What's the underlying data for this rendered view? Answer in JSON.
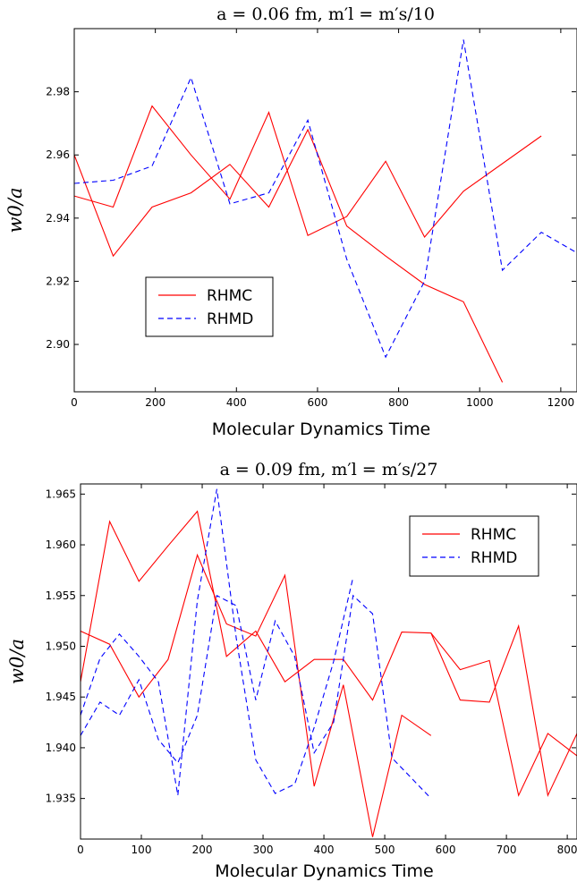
{
  "chart_data": [
    {
      "type": "line",
      "title": "a = 0.06 fm,  m′l = m′s/10",
      "xlabel": "Molecular Dynamics Time",
      "ylabel": "w0/a",
      "xlim": [
        0,
        1240
      ],
      "ylim": [
        2.885,
        3.0
      ],
      "xticks": [
        "0",
        "200",
        "400",
        "600",
        "800",
        "1000",
        "1200"
      ],
      "xtick_values": [
        0,
        200,
        400,
        600,
        800,
        1000,
        1200
      ],
      "yticks": [
        "2.90",
        "2.92",
        "2.94",
        "2.96",
        "2.98"
      ],
      "ytick_values": [
        2.9,
        2.92,
        2.94,
        2.96,
        2.98
      ],
      "legend": {
        "position": "lower-left",
        "entries": [
          "RHMC",
          "RHMD"
        ]
      },
      "colors": {
        "RHMC": "#ff0000",
        "RHMD": "#0000ff"
      },
      "series": [
        {
          "name": "RHMC",
          "style": "solid",
          "color": "#ff0000",
          "x": [
            0,
            96,
            192,
            288,
            384,
            480,
            576,
            672,
            768,
            864,
            960,
            1056
          ],
          "y": [
            2.96,
            2.928,
            2.9435,
            2.948,
            2.957,
            2.9435,
            2.968,
            2.9375,
            2.928,
            2.919,
            2.9135,
            2.888
          ]
        },
        {
          "name": "RHMC",
          "style": "solid",
          "color": "#ff0000",
          "x": [
            0,
            96,
            192,
            288,
            384,
            480,
            576,
            672,
            768,
            864,
            960,
            1152
          ],
          "y": [
            2.947,
            2.9435,
            2.9755,
            2.96,
            2.946,
            2.9735,
            2.9345,
            2.9405,
            2.958,
            2.934,
            2.9485,
            2.966
          ]
        },
        {
          "name": "RHMD",
          "style": "dashed",
          "color": "#0000ff",
          "x": [
            0,
            96,
            192,
            288,
            384,
            480,
            576,
            672,
            768,
            864,
            960,
            1056,
            1152,
            1240
          ],
          "y": [
            2.951,
            2.952,
            2.9565,
            2.9845,
            2.9445,
            2.948,
            2.971,
            2.927,
            2.896,
            2.92,
            2.9965,
            2.9235,
            2.9355,
            2.929
          ]
        }
      ]
    },
    {
      "type": "line",
      "title": "a = 0.09 fm,  m′l = m′s/27",
      "xlabel": "Molecular Dynamics Time",
      "ylabel": "w0/a",
      "xlim": [
        0,
        816
      ],
      "ylim": [
        1.931,
        1.966
      ],
      "xticks": [
        "0",
        "100",
        "200",
        "300",
        "400",
        "500",
        "600",
        "700",
        "800"
      ],
      "xtick_values": [
        0,
        100,
        200,
        300,
        400,
        500,
        600,
        700,
        800
      ],
      "yticks": [
        "1.935",
        "1.940",
        "1.945",
        "1.950",
        "1.955",
        "1.960",
        "1.965"
      ],
      "ytick_values": [
        1.935,
        1.94,
        1.945,
        1.95,
        1.955,
        1.96,
        1.965
      ],
      "legend": {
        "position": "top-right",
        "entries": [
          "RHMC",
          "RHMD"
        ]
      },
      "colors": {
        "RHMC": "#ff0000",
        "RHMD": "#0000ff"
      },
      "series": [
        {
          "name": "RHMC",
          "style": "solid",
          "color": "#ff0000",
          "x": [
            0,
            48,
            96,
            144,
            192,
            240,
            288,
            336,
            384,
            432,
            480,
            528,
            576
          ],
          "y": [
            1.9515,
            1.9502,
            1.945,
            1.9487,
            1.959,
            1.9522,
            1.951,
            1.957,
            1.9362,
            1.9462,
            1.9312,
            1.9432,
            1.9412
          ]
        },
        {
          "name": "RHMC",
          "style": "solid",
          "color": "#ff0000",
          "x": [
            0,
            48,
            96,
            144,
            192,
            240,
            288,
            336,
            384,
            432,
            480,
            528,
            576,
            624,
            672,
            720,
            768,
            816
          ],
          "y": [
            1.9465,
            1.9623,
            1.9564,
            1.9599,
            1.9633,
            1.949,
            1.9515,
            1.9465,
            1.9487,
            1.9487,
            1.9447,
            1.9514,
            1.9513,
            1.9447,
            1.9445,
            1.952,
            1.9353,
            1.9414
          ]
        },
        {
          "name": "RHMC",
          "style": "solid",
          "color": "#ff0000",
          "x": [
            576,
            624,
            672,
            720,
            768,
            816
          ],
          "y": [
            1.9513,
            1.9477,
            1.9486,
            1.9353,
            1.9414,
            1.9392
          ]
        },
        {
          "name": "RHMD",
          "style": "dashed",
          "color": "#0000ff",
          "x": [
            0,
            32,
            64,
            96,
            128,
            160,
            192,
            224,
            256,
            288,
            320,
            352,
            384,
            416,
            448,
            480,
            512,
            544,
            576
          ],
          "y": [
            1.9412,
            1.9445,
            1.9432,
            1.9467,
            1.9408,
            1.9385,
            1.9432,
            1.955,
            1.954,
            1.9447,
            1.9525,
            1.949,
            1.9395,
            1.9425,
            1.955,
            1.9532,
            1.939,
            1.937,
            1.935
          ]
        },
        {
          "name": "RHMD",
          "style": "dashed",
          "color": "#0000ff",
          "x": [
            0,
            32,
            64,
            96,
            128,
            160,
            192,
            224,
            256,
            288,
            320,
            352,
            384,
            416,
            448
          ],
          "y": [
            1.9432,
            1.9488,
            1.9512,
            1.949,
            1.9465,
            1.9353,
            1.9545,
            1.9655,
            1.9508,
            1.9388,
            1.9355,
            1.9364,
            1.942,
            1.9485,
            1.9568
          ]
        }
      ]
    }
  ]
}
